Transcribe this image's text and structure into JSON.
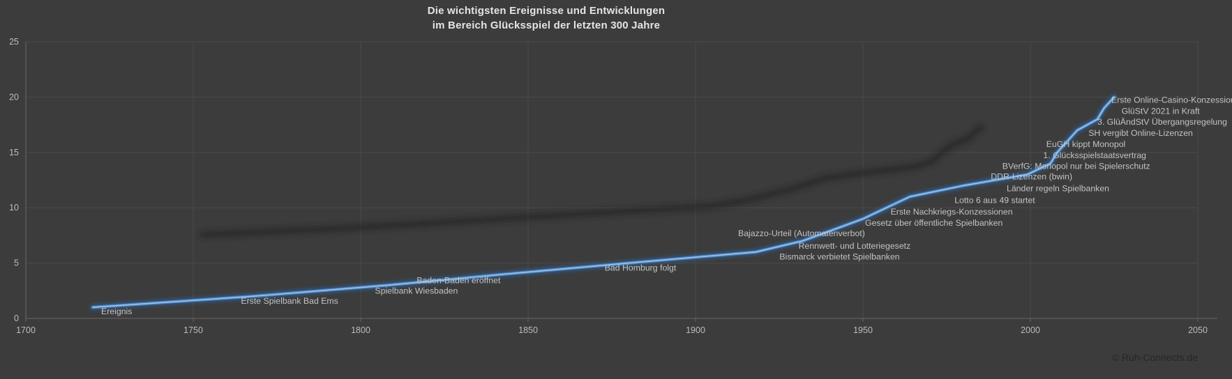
{
  "title": {
    "line1": "Die wichtigsten Ereignisse und Entwicklungen",
    "line2": "im Bereich Glücksspiel der letzten 300 Jahre"
  },
  "footer": {
    "copyright": "© Ruh-Connects.de"
  },
  "colors": {
    "background": "#3c3c3c",
    "gridline": "#4a4a4a",
    "axis": "#686868",
    "tick_text": "#bdbdbd",
    "label_text": "#c3c3c3",
    "title_text": "#e4e4e4",
    "line_core": "#a3c8ea",
    "line_mid": "#4e87c4",
    "line_glow": "#2f5e94",
    "shadow": "#1f1f1f",
    "copyright_text": "#262626"
  },
  "chart_data": {
    "type": "line",
    "title": "Die wichtigsten Ereignisse und Entwicklungen im Bereich Glücksspiel der letzten 300 Jahre",
    "xlabel": "",
    "ylabel": "",
    "x_axis": {
      "min": 1700,
      "max": 2050,
      "tick_interval": 50,
      "ticks": [
        1700,
        1750,
        1800,
        1850,
        1900,
        1950,
        2000,
        2050
      ]
    },
    "y_axis": {
      "min": 0,
      "max": 25,
      "tick_interval": 5,
      "ticks": [
        0,
        5,
        10,
        15,
        20,
        25
      ]
    },
    "grid": true,
    "legend": "none",
    "series": [
      {
        "name": "Ereignis",
        "points": [
          {
            "x": 1720,
            "y": 1,
            "label": "Ereignis",
            "anchor": "start",
            "dx": 12,
            "dy": 6
          },
          {
            "x": 1768,
            "y": 2,
            "label": "Erste Spielbank Bad Ems",
            "anchor": "start",
            "dx": -18,
            "dy": 7
          },
          {
            "x": 1808,
            "y": 3,
            "label": "Spielbank Wiesbaden",
            "anchor": "start",
            "dx": -18,
            "dy": 8
          },
          {
            "x": 1843,
            "y": 4,
            "label": "Baden-Baden eröffnet",
            "anchor": "end",
            "dx": -6,
            "dy": 9
          },
          {
            "x": 1880,
            "y": 5,
            "label": "Bad Homburg folgt",
            "anchor": "middle",
            "dx": 17,
            "dy": 7
          },
          {
            "x": 1918,
            "y": 6,
            "label": "Bismarck verbietet Spielbanken",
            "anchor": "start",
            "dx": 34,
            "dy": 7
          },
          {
            "x": 1932,
            "y": 7,
            "label": "Rennwett- und Lotteriegesetz",
            "anchor": "start",
            "dx": -6,
            "dy": 7
          },
          {
            "x": 1941,
            "y": 8,
            "label": "Bajazzo-Urteil (Automatenverbot)",
            "anchor": "end",
            "dx": 46,
            "dy": 5
          },
          {
            "x": 1950,
            "y": 9,
            "label": "Gesetz über öffentliche Spielbanken",
            "anchor": "start",
            "dx": 3,
            "dy": 6
          },
          {
            "x": 1957,
            "y": 10,
            "label": "Erste Nachkriegs-Konzessionen",
            "anchor": "start",
            "dx": 6,
            "dy": 6
          },
          {
            "x": 1964,
            "y": 11,
            "label": "Lotto 6 aus 49 startet",
            "anchor": "start",
            "dx": 64,
            "dy": 5
          },
          {
            "x": 1980,
            "y": 12,
            "label": "Länder regeln Spielbanken",
            "anchor": "start",
            "dx": 62,
            "dy": 4
          },
          {
            "x": 1999,
            "y": 13,
            "label": "DDR-Lizenzen (bwin)",
            "anchor": "start",
            "dx": -52,
            "dy": 3
          },
          {
            "x": 2006,
            "y": 14,
            "label": "BVerfG: Monopol nur bei Spielerschutz",
            "anchor": "start",
            "dx": -69,
            "dy": 4
          },
          {
            "x": 2008,
            "y": 15,
            "label": "1. Glücksspielstaatsvertrag",
            "anchor": "start",
            "dx": -20,
            "dy": 4
          },
          {
            "x": 2011,
            "y": 16,
            "label": "EuGH kippt Monopol",
            "anchor": "start",
            "dx": -30,
            "dy": 4
          },
          {
            "x": 2014,
            "y": 17,
            "label": "SH vergibt Online-Lizenzen",
            "anchor": "start",
            "dx": 16,
            "dy": 4
          },
          {
            "x": 2020,
            "y": 18,
            "label": "3. GlüÄndStV Übergangsregelung",
            "anchor": "start",
            "dx": 0,
            "dy": 4
          },
          {
            "x": 2022,
            "y": 19,
            "label": "GlüStV 2021 in Kraft",
            "anchor": "start",
            "dx": 25,
            "dy": 4
          },
          {
            "x": 2025,
            "y": 20,
            "label": "Erste Online-Casino-Konzessionen",
            "anchor": "start",
            "dx": -4,
            "dy": 4
          }
        ]
      }
    ]
  }
}
